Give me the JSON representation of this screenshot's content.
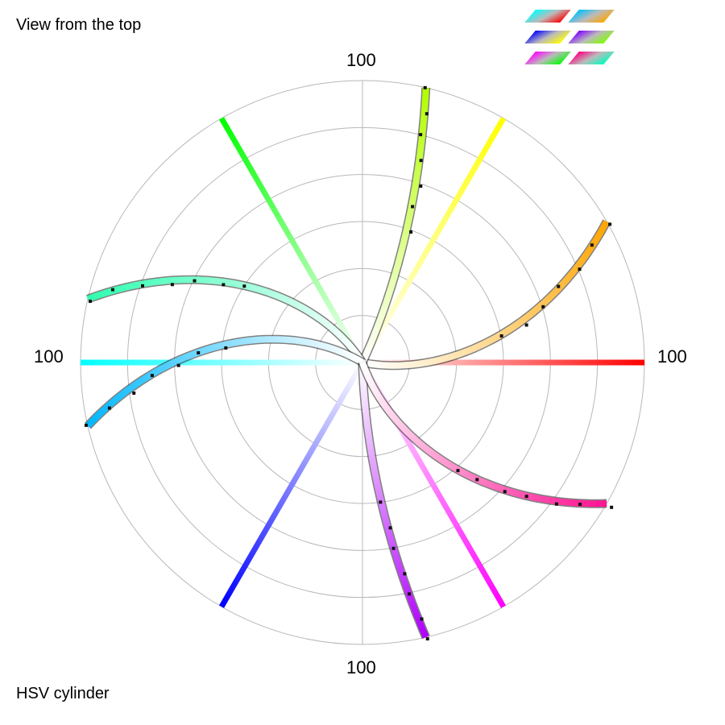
{
  "header": {
    "view_label": "View from the top"
  },
  "footer": {
    "shape_label": "HSV cylinder"
  },
  "chart_data": {
    "type": "scatter",
    "coordinate_system": "polar",
    "r_range": [
      0,
      100
    ],
    "r_tick_labels": {
      "top": "100",
      "right": "100",
      "bottom": "100",
      "left": "100"
    },
    "grid": true,
    "grid_rings": 6,
    "straight_rays": [
      {
        "angle_deg": 0,
        "color": "#ff0000"
      },
      {
        "angle_deg": 60,
        "color": "#ffff00"
      },
      {
        "angle_deg": 120,
        "color": "#00ff00"
      },
      {
        "angle_deg": 180,
        "color": "#00ffff"
      },
      {
        "angle_deg": 240,
        "color": "#0000ff"
      },
      {
        "angle_deg": 300,
        "color": "#ff00ff"
      }
    ],
    "curved_rays": [
      {
        "end_angle_deg": 30,
        "sweep_deg": 42,
        "color": "#ffa500"
      },
      {
        "end_angle_deg": 77,
        "sweep_deg": 12,
        "color": "#b2ff00"
      },
      {
        "end_angle_deg": 167,
        "sweep_deg": 45,
        "color": "#2fffb0"
      },
      {
        "end_angle_deg": 193,
        "sweep_deg": 45,
        "color": "#00b8ff"
      },
      {
        "end_angle_deg": 283,
        "sweep_deg": 12,
        "color": "#b000ff"
      },
      {
        "end_angle_deg": 330,
        "sweep_deg": 42,
        "color": "#ff1493"
      }
    ],
    "legend_thumbnails": [
      {
        "colors": [
          "#00ffff",
          "#ff0000"
        ]
      },
      {
        "colors": [
          "#00bfff",
          "#ffa500"
        ]
      },
      {
        "colors": [
          "#0000ff",
          "#ffff00"
        ]
      },
      {
        "colors": [
          "#8000ff",
          "#80ff00"
        ]
      },
      {
        "colors": [
          "#ff00ff",
          "#00ff00"
        ]
      },
      {
        "colors": [
          "#ff0080",
          "#00ffbf"
        ]
      }
    ]
  }
}
